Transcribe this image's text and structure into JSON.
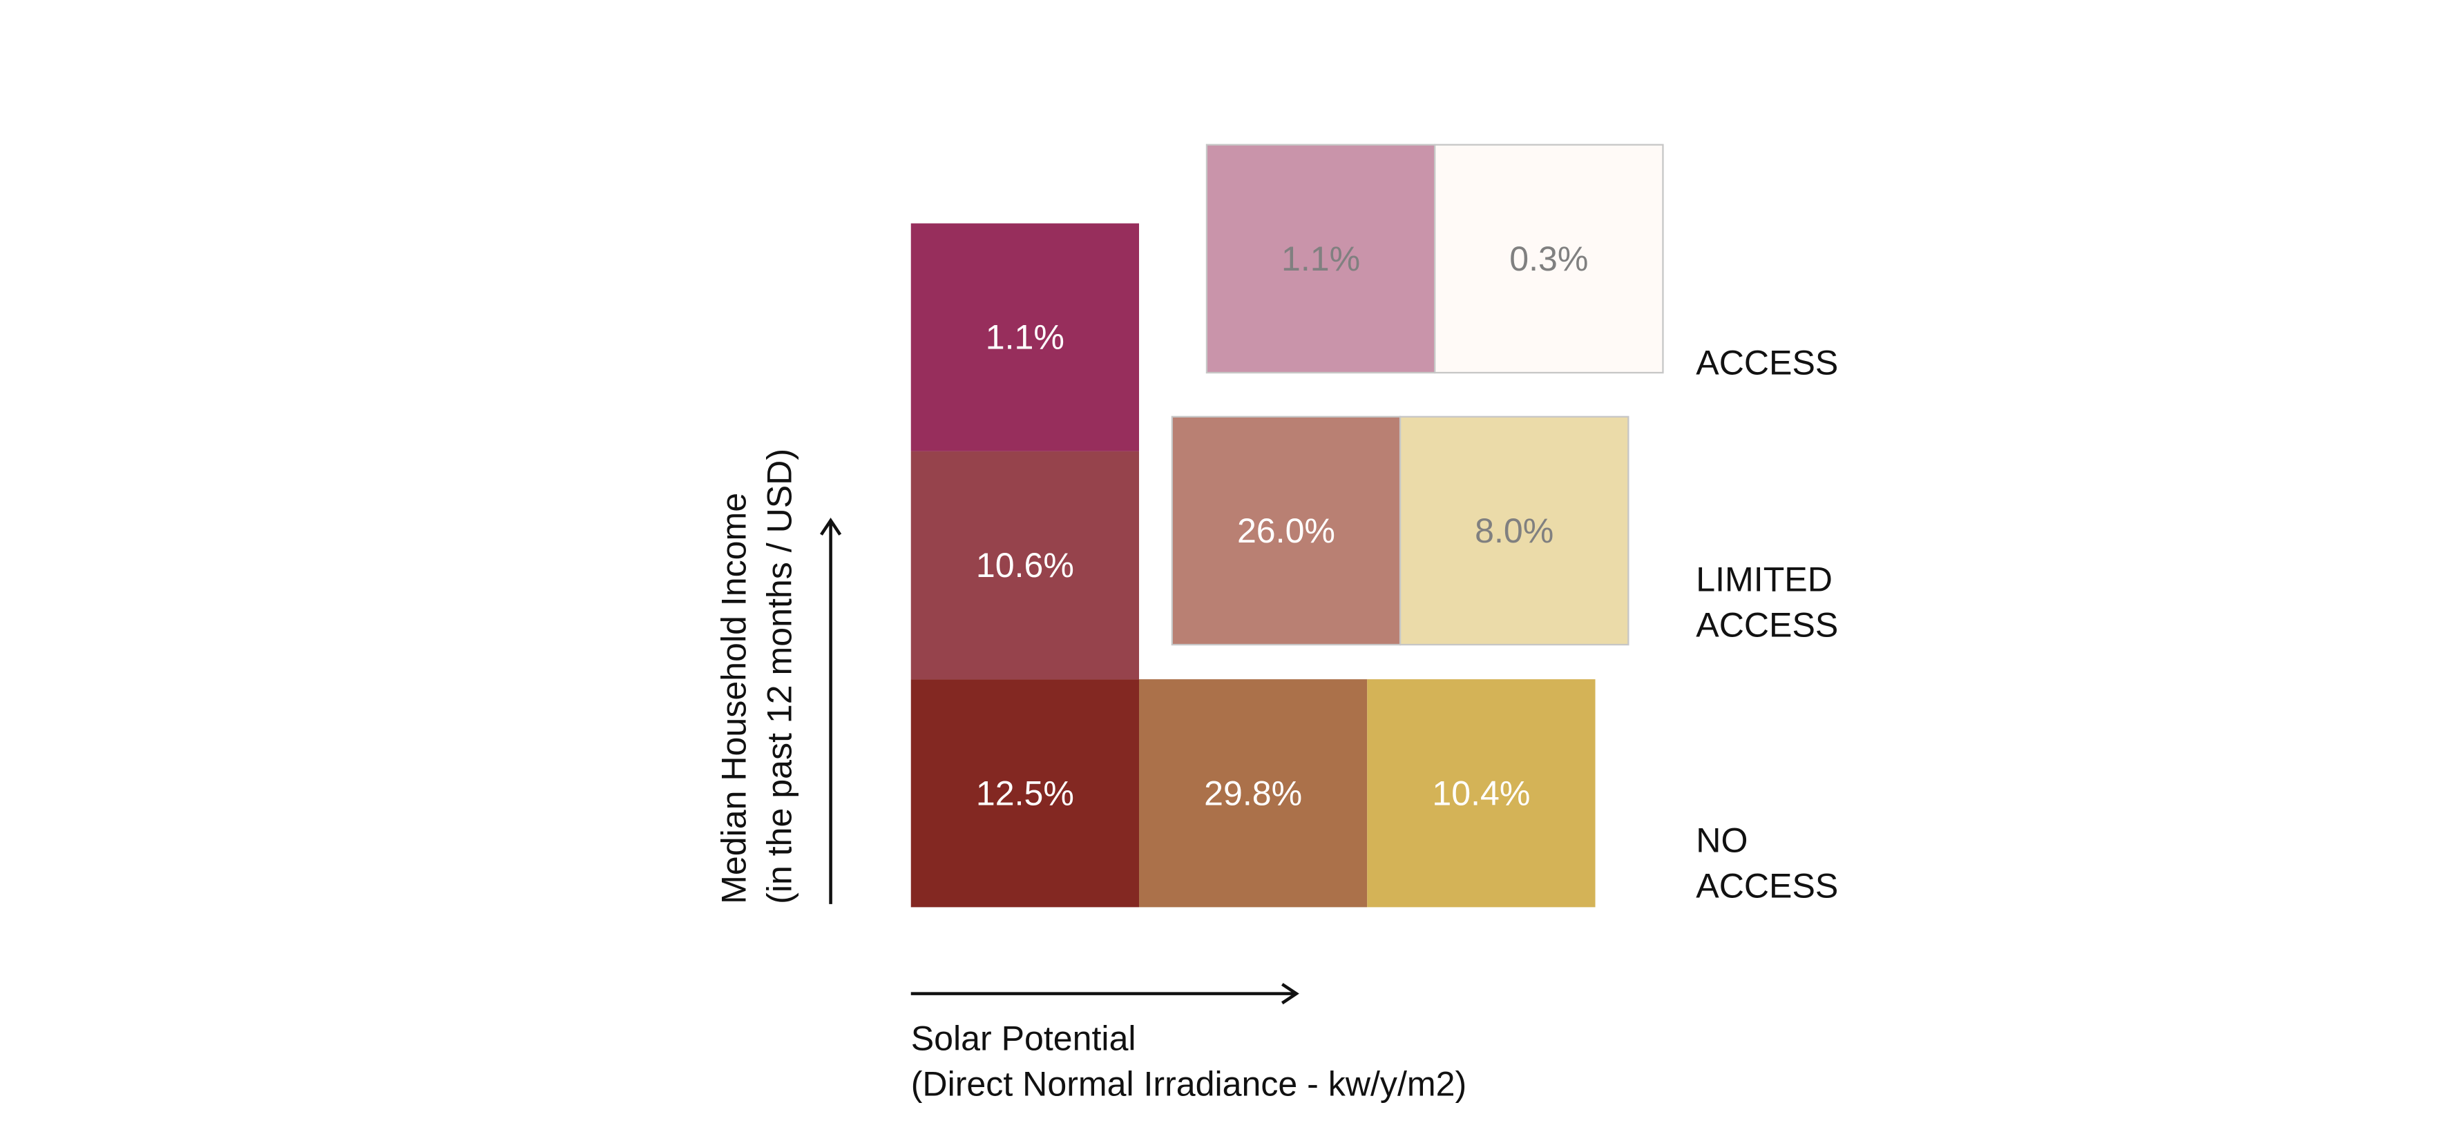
{
  "chart_data": {
    "type": "heatmap",
    "title": "",
    "xlabel": {
      "line1": "Solar Potential",
      "line2": "(Direct Normal Irradiance - kw/y/m2)"
    },
    "ylabel": {
      "line1": "Median Household Income",
      "line2": "(in the past 12 months / USD)"
    },
    "row_labels": {
      "access": [
        "ACCESS"
      ],
      "limited": [
        "LIMITED",
        "ACCESS"
      ],
      "no": [
        "NO",
        "ACCESS"
      ]
    },
    "cells": [
      {
        "id": "no-1",
        "group": "no",
        "value": "12.5%",
        "color": "#832822",
        "text_color": "#ffffff"
      },
      {
        "id": "no-2",
        "group": "no",
        "value": "29.8%",
        "color": "#ab714a",
        "text_color": "#ffffff"
      },
      {
        "id": "no-3",
        "group": "no",
        "value": "10.4%",
        "color": "#d4b357",
        "text_color": "#ffffff"
      },
      {
        "id": "income-mid",
        "group": "income",
        "value": "10.6%",
        "color": "#96434c",
        "text_color": "#ffffff"
      },
      {
        "id": "income-high",
        "group": "income",
        "value": "1.1%",
        "color": "#972e5c",
        "text_color": "#ffffff"
      },
      {
        "id": "limited-1",
        "group": "limited",
        "value": "26.0%",
        "color": "#b98073",
        "text_color": "#ffffff"
      },
      {
        "id": "limited-2",
        "group": "limited",
        "value": "8.0%",
        "color": "#ebdba9",
        "text_color": "#808080"
      },
      {
        "id": "access-1",
        "group": "access",
        "value": "1.1%",
        "color": "#c994aa",
        "text_color": "#808080"
      },
      {
        "id": "access-2",
        "group": "access",
        "value": "0.3%",
        "color": "#fffaf7",
        "text_color": "#808080"
      }
    ]
  }
}
